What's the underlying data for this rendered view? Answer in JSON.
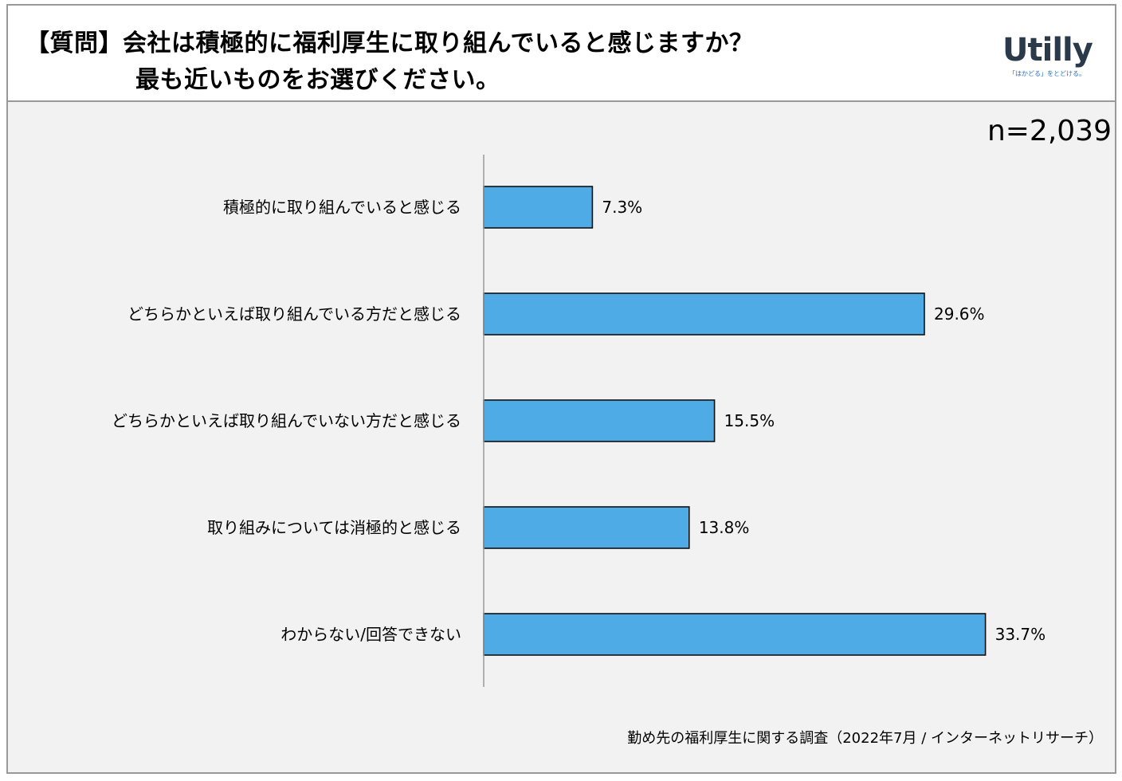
{
  "header": {
    "question_line1": "【質問】会社は積極的に福利厚生に取り組んでいると感じますか？",
    "question_line2": "最も近いものをお選びください。"
  },
  "logo": {
    "wordmark": "Utilly",
    "tagline": "「はかどる」をとどける。"
  },
  "sample_size": "n=2,039",
  "source": "勤め先の福利厚生に関する調査（2022年7月 / インターネットリサーチ）",
  "colors": {
    "bar": "#4eabe6",
    "bar_border": "#111111",
    "axis": "#9a9a9a",
    "panel": "#f2f2f2"
  },
  "chart_data": {
    "type": "bar",
    "orientation": "horizontal",
    "categories": [
      "積極的に取り組んでいると感じる",
      "どちらかといえば取り組んでいる方だと感じる",
      "どちらかといえば取り組んでいない方だと感じる",
      "取り組みについては消極的と感じる",
      "わからない/回答できない"
    ],
    "values": [
      7.3,
      29.6,
      15.5,
      13.8,
      33.7
    ],
    "value_labels": [
      "7.3%",
      "29.6%",
      "15.5%",
      "13.8%",
      "33.7%"
    ],
    "unit": "%",
    "grid": false,
    "legend": "none"
  }
}
